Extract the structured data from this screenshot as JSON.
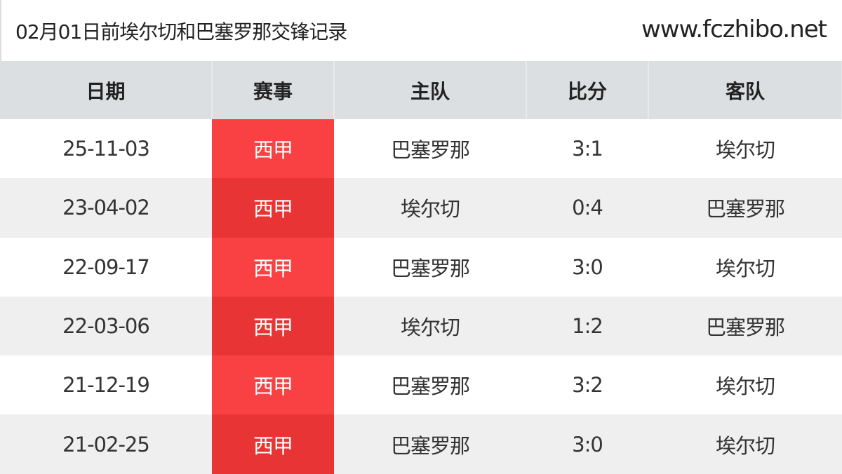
{
  "header": {
    "title": "02月01日前埃尔切和巴塞罗那交锋记录",
    "site": "www.fczhibo.net"
  },
  "columns": [
    "日期",
    "赛事",
    "主队",
    "比分",
    "客队"
  ],
  "colors": {
    "competition_odd": "#f94144",
    "competition_even": "#e83434",
    "header_bg": "#dcdfe1"
  },
  "rows": [
    {
      "date": "25-11-03",
      "competition": "西甲",
      "home": "巴塞罗那",
      "score": "3:1",
      "away": "埃尔切"
    },
    {
      "date": "23-04-02",
      "competition": "西甲",
      "home": "埃尔切",
      "score": "0:4",
      "away": "巴塞罗那"
    },
    {
      "date": "22-09-17",
      "competition": "西甲",
      "home": "巴塞罗那",
      "score": "3:0",
      "away": "埃尔切"
    },
    {
      "date": "22-03-06",
      "competition": "西甲",
      "home": "埃尔切",
      "score": "1:2",
      "away": "巴塞罗那"
    },
    {
      "date": "21-12-19",
      "competition": "西甲",
      "home": "巴塞罗那",
      "score": "3:2",
      "away": "埃尔切"
    },
    {
      "date": "21-02-25",
      "competition": "西甲",
      "home": "巴塞罗那",
      "score": "3:0",
      "away": "埃尔切"
    }
  ]
}
